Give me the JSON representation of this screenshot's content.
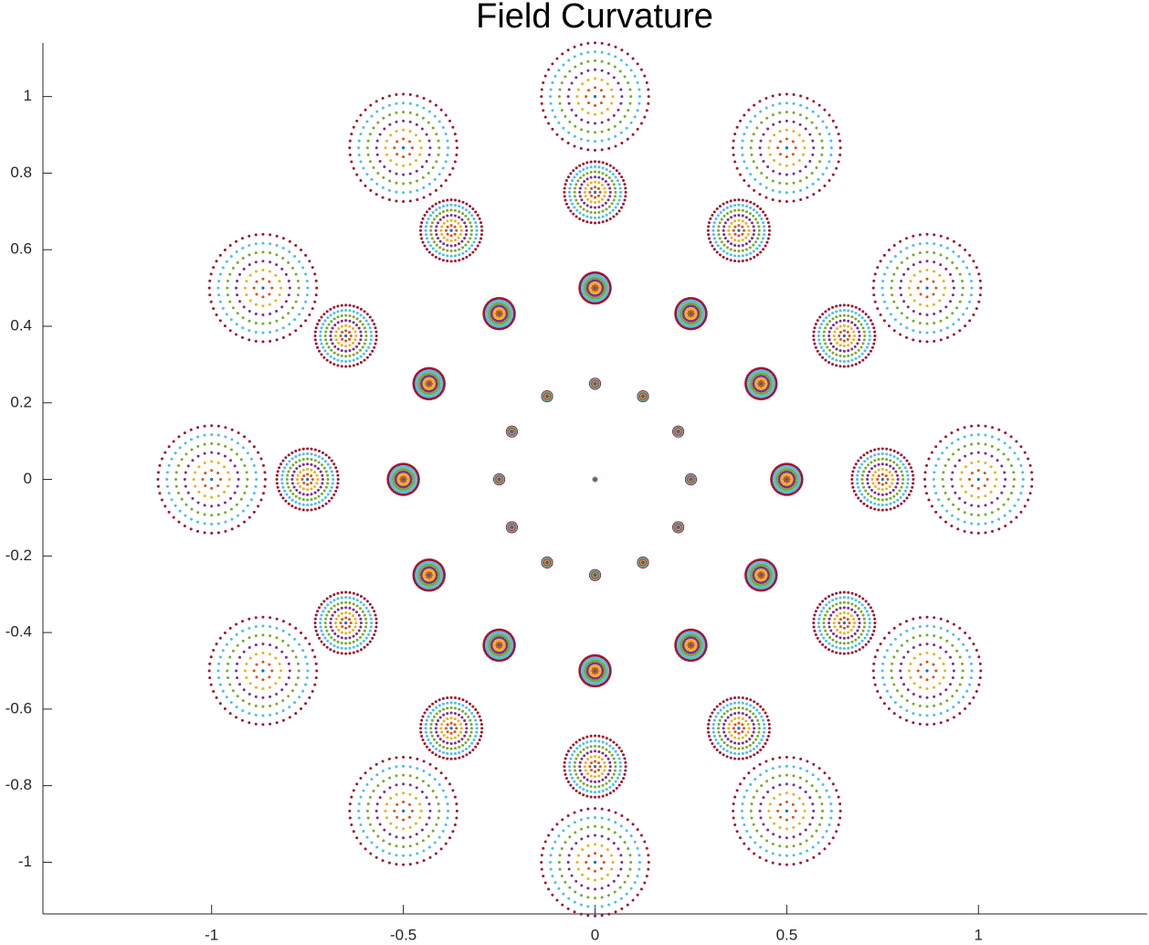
{
  "chart_data": {
    "type": "spot",
    "title": "Field Curvature",
    "xlim": [
      -1.44,
      1.44
    ],
    "ylim": [
      -1.135,
      1.14
    ],
    "xticks": [
      -1,
      -0.5,
      0,
      0.5,
      1
    ],
    "yticks": [
      -1,
      -0.8,
      -0.6,
      -0.4,
      -0.2,
      0,
      0.2,
      0.4,
      0.6,
      0.8,
      1
    ],
    "grid": false,
    "center_color": "#0072BD",
    "ring_colors": [
      "#D95319",
      "#EDB120",
      "#7E2F8E",
      "#77AC30",
      "#4DBEEE",
      "#A2142F"
    ],
    "fields": {
      "x": [
        0,
        1,
        0.866,
        0.5,
        0,
        -0.5,
        -0.866,
        -1,
        -0.866,
        -0.5,
        0,
        0.5,
        0.866,
        0.75,
        0.65,
        0.375,
        0,
        -0.375,
        -0.65,
        -0.75,
        -0.65,
        -0.375,
        0,
        0.375,
        0.65,
        0.5,
        0.433,
        0.25,
        0,
        -0.25,
        -0.433,
        -0.5,
        -0.433,
        -0.25,
        0,
        0.25,
        0.433,
        0.25,
        0.217,
        0.125,
        0,
        -0.125,
        -0.217,
        -0.25,
        -0.217,
        -0.125,
        0,
        0.125,
        0.217
      ],
      "y": [
        0,
        0,
        0.5,
        0.866,
        1,
        0.866,
        0.5,
        0,
        -0.5,
        -0.866,
        -1,
        -0.866,
        -0.5,
        0,
        0.375,
        0.65,
        0.75,
        0.65,
        0.375,
        0,
        -0.375,
        -0.65,
        -0.75,
        -0.65,
        -0.375,
        0,
        0.25,
        0.433,
        0.5,
        0.433,
        0.25,
        0,
        -0.25,
        -0.433,
        -0.5,
        -0.433,
        -0.25,
        0,
        0.125,
        0.217,
        0.25,
        0.217,
        0.125,
        0,
        -0.125,
        -0.217,
        -0.25,
        -0.217,
        -0.125
      ],
      "spot_radius": [
        0.003,
        0.14,
        0.14,
        0.14,
        0.14,
        0.14,
        0.14,
        0.14,
        0.14,
        0.14,
        0.14,
        0.14,
        0.14,
        0.08,
        0.08,
        0.08,
        0.08,
        0.08,
        0.08,
        0.08,
        0.08,
        0.08,
        0.08,
        0.08,
        0.08,
        0.04,
        0.04,
        0.04,
        0.04,
        0.04,
        0.04,
        0.04,
        0.04,
        0.04,
        0.04,
        0.04,
        0.04,
        0.012,
        0.012,
        0.012,
        0.012,
        0.012,
        0.012,
        0.012,
        0.012,
        0.012,
        0.012,
        0.012,
        0.012
      ]
    }
  }
}
